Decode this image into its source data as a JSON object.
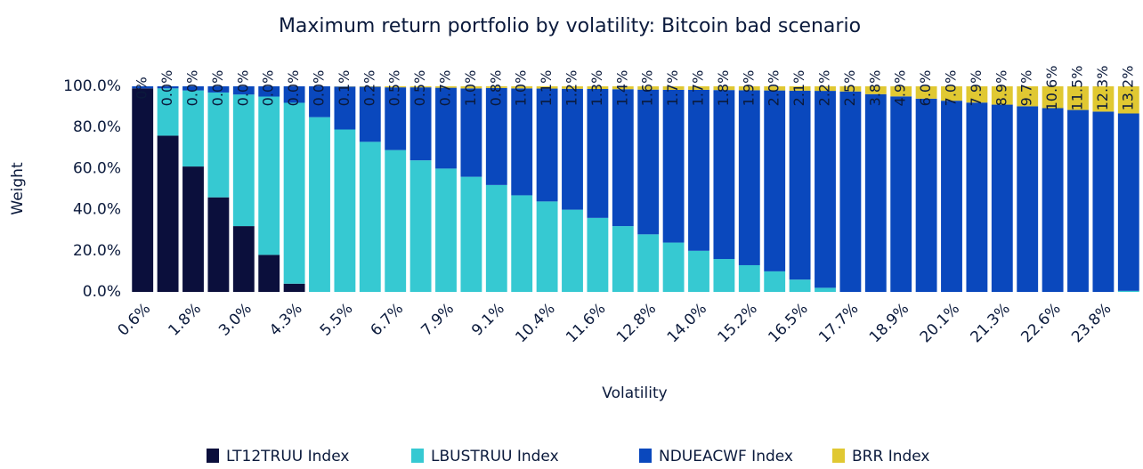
{
  "chart_data": {
    "type": "stacked-bar",
    "title": "Maximum return portfolio by volatility: Bitcoin bad scenario",
    "x_label": "Volatility",
    "y_label": "Weight",
    "categories": [
      "0.6%",
      null,
      "1.8%",
      null,
      "3.0%",
      null,
      "4.3%",
      null,
      "5.5%",
      null,
      "6.7%",
      null,
      "7.9%",
      null,
      "9.1%",
      null,
      "10.4%",
      null,
      "11.6%",
      null,
      "12.8%",
      null,
      "14.0%",
      null,
      "15.2%",
      null,
      "16.5%",
      null,
      "17.7%",
      null,
      "18.9%",
      null,
      "20.1%",
      null,
      "21.3%",
      null,
      "22.6%",
      null,
      "23.8%",
      null
    ],
    "series": [
      {
        "name": "LT12TRUU Index",
        "color": "#0b0f3c",
        "values": [
          99,
          76,
          61,
          46,
          32,
          18,
          4,
          0,
          0,
          0,
          0,
          0,
          0,
          0,
          0,
          0,
          0,
          0,
          0,
          0,
          0,
          0,
          0,
          0,
          0,
          0,
          0,
          0,
          0,
          0,
          0,
          0,
          0,
          0,
          0,
          0,
          0,
          0,
          0,
          0
        ]
      },
      {
        "name": "LBUSTRUU Index",
        "color": "#36c9d2",
        "values": [
          0,
          23,
          37,
          51,
          64,
          77,
          88,
          85,
          79,
          73,
          69,
          64,
          60,
          56,
          52,
          47,
          44,
          40,
          36,
          32,
          28,
          24,
          20,
          16,
          13,
          10,
          6,
          2,
          0,
          0,
          0,
          0,
          0,
          0,
          0,
          0,
          0,
          0,
          0,
          0.5
        ]
      },
      {
        "name": "NDUEACWF Index",
        "color": "#0a48bd",
        "values": [
          1,
          1,
          2,
          3,
          4,
          5,
          8,
          15,
          20.9,
          26.8,
          30.5,
          35.5,
          39.3,
          43,
          47.2,
          52,
          54.9,
          58.8,
          62.7,
          66.6,
          70.4,
          74.3,
          78.3,
          82.2,
          85.1,
          88,
          91.9,
          95.8,
          97.5,
          96.2,
          95.1,
          94,
          93,
          92.1,
          91.1,
          90.3,
          89.4,
          88.5,
          87.7,
          86.3
        ]
      },
      {
        "name": "BRR Index",
        "color": "#e0c832",
        "values": [
          0,
          0,
          0,
          0,
          0,
          0,
          0,
          0,
          0.1,
          0.2,
          0.5,
          0.5,
          0.7,
          1.0,
          0.8,
          1.0,
          1.1,
          1.2,
          1.3,
          1.4,
          1.6,
          1.7,
          1.7,
          1.8,
          1.9,
          2.0,
          2.1,
          2.2,
          2.5,
          3.8,
          4.9,
          6.0,
          7.0,
          7.9,
          8.9,
          9.7,
          10.6,
          11.5,
          12.3,
          13.2
        ],
        "value_labels": [
          "0%",
          "0.0%",
          "0.0%",
          "0.0%",
          "0.0%",
          "0.0%",
          "0.0%",
          "0.0%",
          "0.1%",
          "0.2%",
          "0.5%",
          "0.5%",
          "0.7%",
          "1.0%",
          "0.8%",
          "1.0%",
          "1.1%",
          "1.2%",
          "1.3%",
          "1.4%",
          "1.6%",
          "1.7%",
          "1.7%",
          "1.8%",
          "1.9%",
          "2.0%",
          "2.1%",
          "2.2%",
          "2.5%",
          "3.8%",
          "4.9%",
          "6.0%",
          "7.0%",
          "7.9%",
          "8.9%",
          "9.7%",
          "10.6%",
          "11.5%",
          "12.3%",
          "13.2%"
        ]
      }
    ],
    "ylim": [
      0,
      100
    ],
    "yticks": [
      {
        "value": 0,
        "label": "0.0%"
      },
      {
        "value": 20,
        "label": "20.0%"
      },
      {
        "value": 40,
        "label": "40.0%"
      },
      {
        "value": 60,
        "label": "60.0%"
      },
      {
        "value": 80,
        "label": "80.0%"
      },
      {
        "value": 100,
        "label": "100.0%"
      }
    ],
    "grid": false,
    "legend": "bottom"
  }
}
